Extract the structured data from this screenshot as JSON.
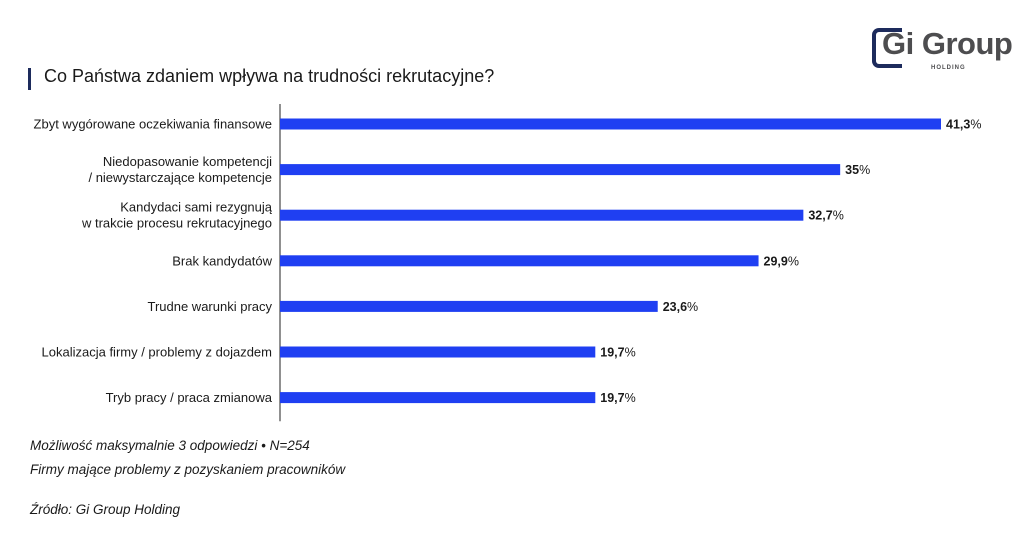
{
  "header": {
    "title": "Co Państwa zdaniem wpływa na trudności rekrutacyjne?"
  },
  "logo": {
    "name": "Gi Group",
    "sub": "HOLDING"
  },
  "colors": {
    "bar": "#1f3ff2",
    "axis": "#222222",
    "accent": "#1d2b5c"
  },
  "chart_data": {
    "type": "bar",
    "orientation": "horizontal",
    "title": "Co Państwa zdaniem wpływa na trudności rekrutacyjne?",
    "categories": [
      [
        "Zbyt wygórowane oczekiwania finansowe"
      ],
      [
        "Niedopasowanie kompetencji",
        "/ niewystarczające kompetencje"
      ],
      [
        "Kandydaci sami rezygnują",
        "w trakcie procesu rekrutacyjnego"
      ],
      [
        "Brak kandydatów"
      ],
      [
        "Trudne warunki pracy"
      ],
      [
        "Lokalizacja firmy / problemy z dojazdem"
      ],
      [
        "Tryb pracy / praca zmianowa"
      ]
    ],
    "values": [
      41.3,
      35,
      32.7,
      29.9,
      23.6,
      19.7,
      19.7
    ],
    "value_labels": [
      [
        "41,3",
        "%"
      ],
      [
        "35",
        "%"
      ],
      [
        "32,7",
        "%"
      ],
      [
        "29,9",
        "%"
      ],
      [
        "23,6",
        "%"
      ],
      [
        "19,7",
        "%"
      ],
      [
        "19,7",
        "%"
      ]
    ],
    "grid": false,
    "legend": "none"
  },
  "footer": {
    "note1": "Możliwość maksymalnie 3 odpowiedzi • N=254",
    "note2": "Firmy mające problemy z pozyskaniem pracowników",
    "source": "Źródło: Gi Group Holding"
  }
}
